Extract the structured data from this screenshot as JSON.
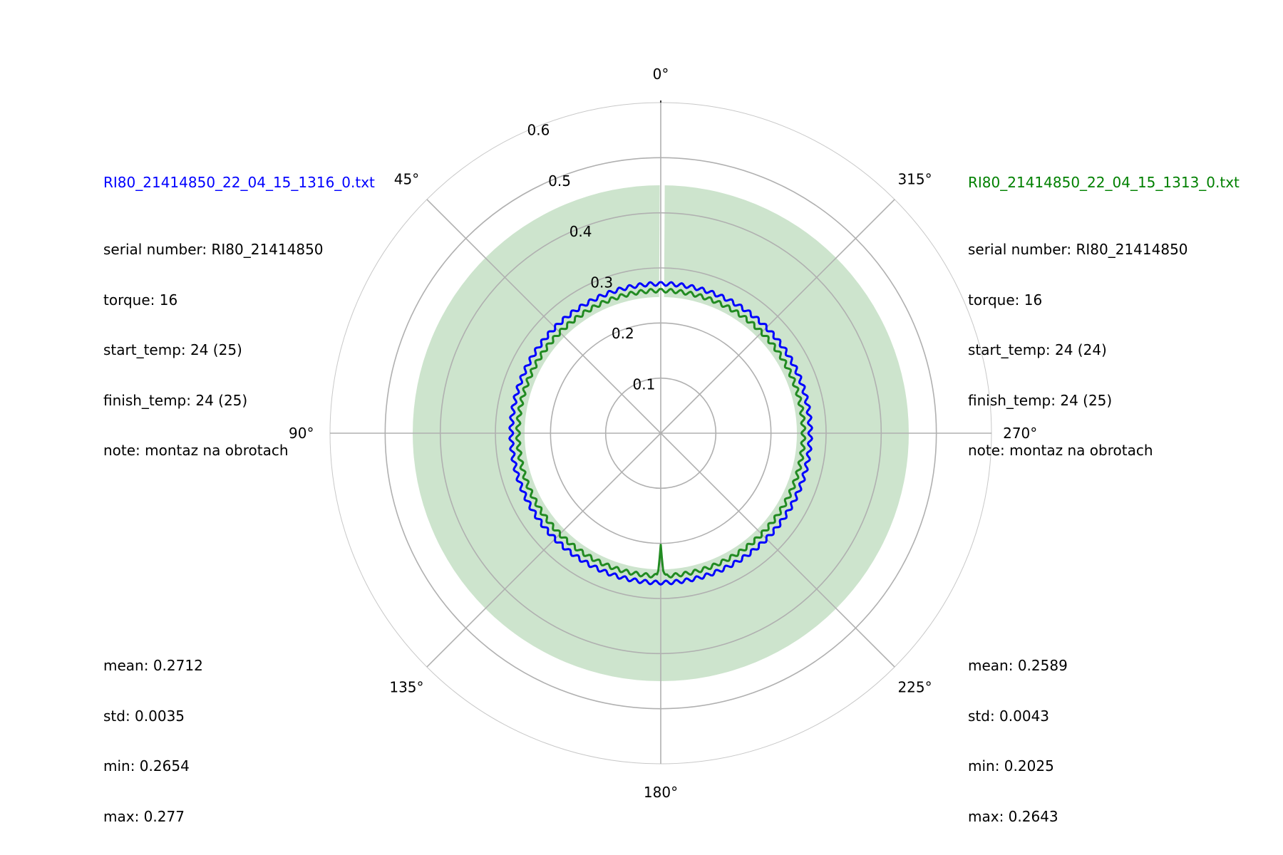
{
  "chart_data": {
    "type": "polar-line",
    "theta_direction": "counterclockwise",
    "theta_zero": "top",
    "theta_ticks": [
      "0°",
      "45°",
      "90°",
      "135°",
      "180°",
      "225°",
      "270°",
      "315°"
    ],
    "r_ticks": [
      "0.1",
      "0.2",
      "0.3",
      "0.4",
      "0.5",
      "0.6"
    ],
    "rlim": [
      0,
      0.6
    ],
    "band": {
      "color": "#cde4cd",
      "r_inner": 0.247,
      "r_outer": 0.45,
      "gap_near_deg": 0
    },
    "series": [
      {
        "name": "RI80_21414850_22_04_15_1316_0.txt",
        "color": "#0000ff",
        "base": 0.2712,
        "amplitude": 0.0035,
        "mean": 0.2712,
        "min": 0.2654,
        "max": 0.277
      },
      {
        "name": "RI80_21414850_22_04_15_1313_0.txt",
        "color": "#228b22",
        "base": 0.2589,
        "amplitude": 0.0035,
        "mean": 0.2589,
        "min": 0.2025,
        "max": 0.2643,
        "spike": {
          "theta_deg": 180,
          "value": 0.2025
        }
      }
    ]
  },
  "left_panel": {
    "title": "RI80_21414850_22_04_15_1316_0.txt",
    "title_color": "#0000ff",
    "serial": "serial number: RI80_21414850",
    "torque": "torque: 16",
    "start_temp": "start_temp: 24 (25)",
    "finish_temp": "finish_temp: 24 (25)",
    "note": "note: montaz na obrotach",
    "mean": "mean: 0.2712",
    "std": "std: 0.0035",
    "min": "min: 0.2654",
    "max": "max: 0.277"
  },
  "right_panel": {
    "title": "RI80_21414850_22_04_15_1313_0.txt",
    "title_color": "#008000",
    "serial": "serial number: RI80_21414850",
    "torque": "torque: 16",
    "start_temp": "start_temp: 24 (24)",
    "finish_temp": "finish_temp: 24 (25)",
    "note": "note: montaz na obrotach",
    "mean": "mean: 0.2589",
    "std": "std: 0.0043",
    "min": "min: 0.2025",
    "max": "max: 0.2643"
  }
}
